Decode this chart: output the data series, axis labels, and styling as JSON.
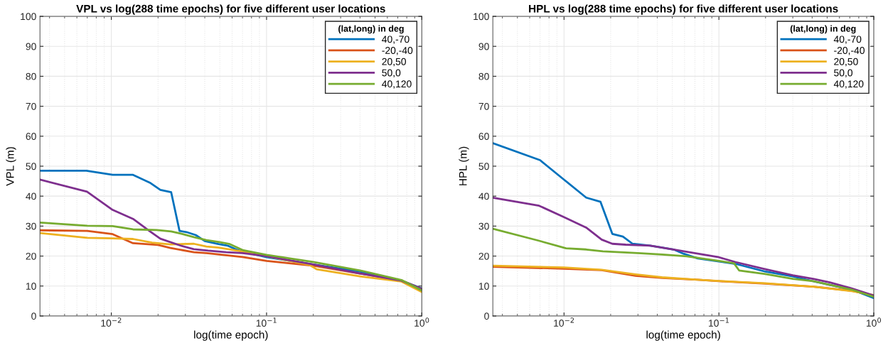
{
  "chart_data": [
    {
      "type": "line",
      "title": "VPL vs log(288 time epochs) for five different user locations",
      "xlabel": "log(time epoch)",
      "ylabel": "VPL (m)",
      "legend_title": "(lat,long) in deg",
      "legend": "top right",
      "grid": true,
      "log": "x",
      "line_style": "solid",
      "marker": "none",
      "xlim": [
        0.00347,
        1
      ],
      "xticks": [
        {
          "value": 0.01,
          "label": "10$^{−2}$"
        },
        {
          "value": 0.1,
          "label": "10$^{−1}$"
        },
        {
          "value": 1,
          "label": "10$^{0}$"
        }
      ],
      "ylim": [
        0,
        100
      ],
      "yticks": [
        0,
        10,
        20,
        30,
        40,
        50,
        60,
        70,
        80,
        90,
        100
      ],
      "series": [
        {
          "name": "40,-70",
          "color": "#0072bd",
          "x": [
            0.00347,
            0.0069,
            0.0102,
            0.0138,
            0.0177,
            0.0207,
            0.0243,
            0.0275,
            0.0305,
            0.035,
            0.04,
            0.049,
            0.056,
            0.063,
            0.07,
            0.1,
            0.2,
            0.4,
            0.74,
            1.0
          ],
          "values": [
            48.5,
            48.5,
            47.1,
            47.1,
            44.5,
            42.1,
            41.3,
            28.4,
            28,
            27,
            25,
            24,
            23.5,
            22.3,
            21.5,
            19.6,
            17.2,
            14.8,
            11.8,
            9.2
          ]
        },
        {
          "name": "-20,-40",
          "color": "#d95319",
          "x": [
            0.00347,
            0.007,
            0.0102,
            0.0138,
            0.02,
            0.024,
            0.034,
            0.041,
            0.07,
            0.1,
            0.2,
            0.4,
            0.74,
            1.0
          ],
          "values": [
            28.6,
            28.4,
            27.3,
            24.3,
            23.7,
            22.7,
            21.3,
            21.0,
            19.7,
            18.4,
            16.8,
            14.2,
            11.8,
            9.0
          ]
        },
        {
          "name": "20,50",
          "color": "#edb120",
          "x": [
            0.00347,
            0.007,
            0.0102,
            0.0138,
            0.0183,
            0.024,
            0.034,
            0.041,
            0.049,
            0.07,
            0.1,
            0.19,
            0.21,
            0.4,
            0.74,
            1.0
          ],
          "values": [
            27.7,
            26.1,
            25.9,
            25.7,
            24.5,
            23.9,
            24.1,
            23.2,
            22.8,
            21.5,
            20,
            17,
            15.6,
            13.2,
            11.5,
            8.0
          ]
        },
        {
          "name": "50,0",
          "color": "#7e2f8e",
          "x": [
            0.00347,
            0.00697,
            0.0102,
            0.0138,
            0.0177,
            0.0207,
            0.0279,
            0.034,
            0.042,
            0.055,
            0.07,
            0.1,
            0.2,
            0.4,
            0.74,
            1.0
          ],
          "values": [
            45.5,
            41.5,
            35.4,
            32.4,
            28.3,
            25.8,
            23.5,
            22.3,
            21.8,
            21.3,
            21,
            20,
            17.2,
            14.2,
            11.8,
            9.0
          ]
        },
        {
          "name": "40,120",
          "color": "#77ac30",
          "x": [
            0.00347,
            0.007,
            0.0102,
            0.0138,
            0.0196,
            0.0243,
            0.028,
            0.034,
            0.041,
            0.049,
            0.058,
            0.07,
            0.1,
            0.2,
            0.4,
            0.74,
            1.0
          ],
          "values": [
            31.2,
            30.1,
            30,
            28.9,
            28.7,
            28.2,
            27.5,
            26.3,
            25.3,
            24.7,
            24,
            22,
            20.4,
            18,
            15.2,
            12,
            8.5
          ]
        }
      ]
    },
    {
      "type": "line",
      "title": "HPL vs log(288 time epochs) for five different user locations",
      "xlabel": "log(time epoch)",
      "ylabel": "HPL (m)",
      "legend_title": "(lat,long) in deg",
      "legend": "top right",
      "grid": true,
      "log": "x",
      "line_style": "solid",
      "marker": "none",
      "xlim": [
        0.00347,
        1
      ],
      "xticks": [
        {
          "value": 0.01,
          "label": "10$^{−2}$"
        },
        {
          "value": 0.1,
          "label": "10$^{−1}$"
        },
        {
          "value": 1,
          "label": "10$^{0}$"
        }
      ],
      "ylim": [
        0,
        100
      ],
      "yticks": [
        0,
        10,
        20,
        30,
        40,
        50,
        60,
        70,
        80,
        90,
        100
      ],
      "series": [
        {
          "name": "40,-70",
          "color": "#0072bd",
          "x": [
            0.00347,
            0.007,
            0.01,
            0.0139,
            0.0172,
            0.0205,
            0.024,
            0.0277,
            0.036,
            0.043,
            0.051,
            0.059,
            0.073,
            0.1,
            0.128,
            0.2,
            0.3,
            0.406,
            0.52,
            0.72,
            1.0
          ],
          "values": [
            57.7,
            52,
            45.5,
            39.5,
            38.1,
            27.4,
            26.5,
            24.1,
            23.5,
            22.8,
            22.2,
            20.8,
            19.2,
            18.2,
            17.4,
            14.8,
            13.2,
            11.6,
            10.4,
            8.8,
            6.0
          ]
        },
        {
          "name": "-20,-40",
          "color": "#d95319",
          "x": [
            0.00347,
            0.01,
            0.0175,
            0.029,
            0.043,
            0.062,
            0.073,
            0.1,
            0.2,
            0.406,
            0.72,
            1.0
          ],
          "values": [
            16.4,
            15.8,
            15.3,
            13.4,
            12.7,
            12.3,
            12.1,
            11.6,
            10.8,
            9.8,
            8.4,
            6.8
          ]
        },
        {
          "name": "20,50",
          "color": "#edb120",
          "x": [
            0.00347,
            0.01,
            0.0175,
            0.029,
            0.043,
            0.073,
            0.1,
            0.2,
            0.406,
            0.72,
            1.0
          ],
          "values": [
            16.8,
            16.2,
            15.4,
            13.9,
            12.9,
            12.1,
            11.7,
            10.9,
            9.8,
            8.3,
            7.0
          ]
        },
        {
          "name": "50,0",
          "color": "#7e2f8e",
          "x": [
            0.00347,
            0.0069,
            0.01,
            0.0139,
            0.0175,
            0.0205,
            0.025,
            0.036,
            0.051,
            0.073,
            0.1,
            0.128,
            0.2,
            0.3,
            0.406,
            0.52,
            0.72,
            1.0
          ],
          "values": [
            39.5,
            36.8,
            33,
            29.5,
            25.5,
            24.1,
            23.8,
            23.5,
            22.2,
            20.8,
            19.6,
            18,
            15.6,
            13.6,
            12.4,
            11.2,
            9.2,
            6.8
          ]
        },
        {
          "name": "40,120",
          "color": "#77ac30",
          "x": [
            0.00347,
            0.0069,
            0.0103,
            0.0139,
            0.0178,
            0.03,
            0.043,
            0.062,
            0.073,
            0.1,
            0.125,
            0.135,
            0.2,
            0.3,
            0.406,
            0.72,
            1.0
          ],
          "values": [
            29.1,
            25.1,
            22.6,
            22.2,
            21.6,
            21,
            20.5,
            19.9,
            19.4,
            18.4,
            17.6,
            15.2,
            14,
            12.4,
            11.6,
            8.8,
            6.4
          ]
        }
      ]
    }
  ]
}
